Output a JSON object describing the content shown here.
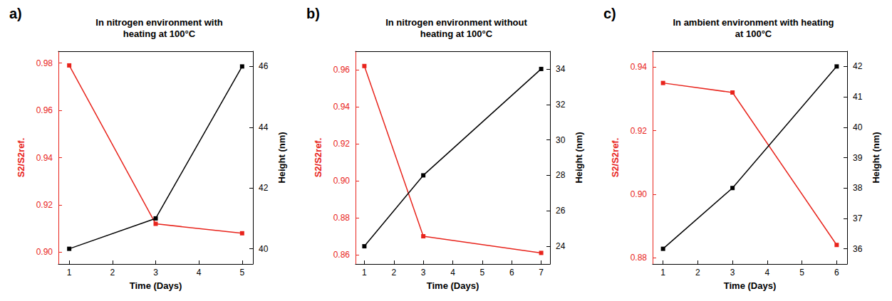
{
  "chart_data": [
    {
      "type": "line",
      "annotation": "a)",
      "title": "In nitrogen environment with heating at 100°C",
      "x_label": "Time (Days)",
      "y_label": "S2/S2ref.",
      "y2_label": "Height (nm)",
      "x": [
        1,
        3,
        5
      ],
      "series": [
        {
          "color": "#e8241c",
          "values": [
            0.979,
            0.912,
            0.908
          ],
          "marker": "square",
          "line_style": "solid"
        },
        {
          "color": "#000000",
          "values": [
            40,
            41,
            46
          ],
          "axis": "y2",
          "marker": "square",
          "line_style": "solid"
        }
      ],
      "xlim": [
        0.75,
        5.25
      ],
      "xticks": [
        1,
        2,
        3,
        4,
        5
      ],
      "ylim": [
        0.895,
        0.985
      ],
      "yticks": [
        {
          "value": 0.9,
          "label": "0.90"
        },
        0.92,
        0.94,
        0.96,
        0.98
      ],
      "y2lim": [
        39.5,
        46.5
      ],
      "y2ticks": [
        40,
        42,
        44,
        46
      ],
      "grid": false
    },
    {
      "type": "line",
      "annotation": "b)",
      "title": "In nitrogen environment without heating at 100°C",
      "x_label": "Time (Days)",
      "y_label": "S2/S2ref.",
      "y2_label": "Height (nm)",
      "x": [
        1,
        3,
        7
      ],
      "series": [
        {
          "color": "#e8241c",
          "values": [
            0.962,
            0.87,
            0.861
          ],
          "marker": "square",
          "line_style": "solid"
        },
        {
          "color": "#000000",
          "values": [
            24,
            28,
            34
          ],
          "axis": "y2",
          "marker": "square",
          "line_style": "solid"
        }
      ],
      "xlim": [
        0.7,
        7.3
      ],
      "xticks": [
        1,
        2,
        3,
        4,
        5,
        6,
        7
      ],
      "ylim": [
        0.855,
        0.97
      ],
      "yticks": [
        0.86,
        0.88,
        {
          "value": 0.9,
          "label": "0.90"
        },
        0.92,
        0.94,
        0.96
      ],
      "y2lim": [
        23,
        35
      ],
      "y2ticks": [
        24,
        26,
        28,
        30,
        32,
        34
      ],
      "grid": false
    },
    {
      "type": "line",
      "annotation": "c)",
      "title": "In ambient environment with heating at 100°C",
      "x_label": "Time (Days)",
      "y_label": "S2/S2ref.",
      "y2_label": "Height (nm)",
      "x": [
        1,
        3,
        6
      ],
      "series": [
        {
          "color": "#e8241c",
          "values": [
            0.935,
            0.932,
            0.884
          ],
          "marker": "square",
          "line_style": "solid"
        },
        {
          "color": "#000000",
          "values": [
            36,
            38,
            42
          ],
          "axis": "y2",
          "marker": "square",
          "line_style": "solid"
        }
      ],
      "xlim": [
        0.7,
        6.3
      ],
      "xticks": [
        1,
        2,
        3,
        4,
        5,
        6
      ],
      "ylim": [
        0.878,
        0.945
      ],
      "yticks": [
        0.88,
        {
          "value": 0.9,
          "label": "0.90"
        },
        0.92,
        0.94
      ],
      "y2lim": [
        35.5,
        42.5
      ],
      "y2ticks": [
        36,
        37,
        38,
        39,
        40,
        41,
        42
      ],
      "grid": false
    }
  ]
}
